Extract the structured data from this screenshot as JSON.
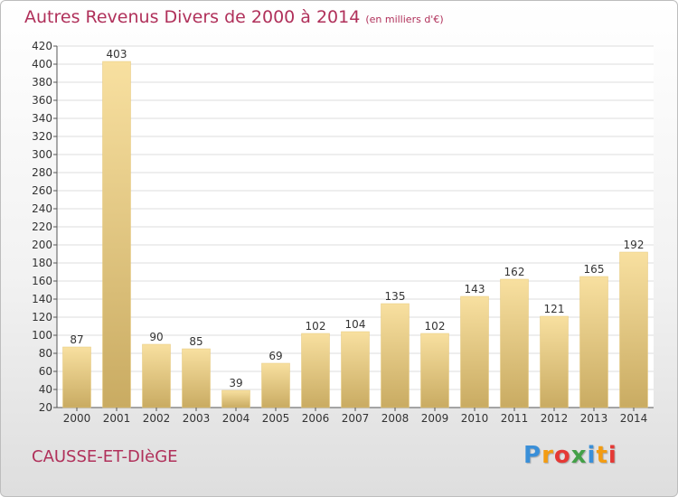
{
  "chart_data": {
    "type": "bar",
    "title": "Autres Revenus Divers de 2000 à 2014",
    "subtitle": "(en milliers d'€)",
    "categories": [
      "2000",
      "2001",
      "2002",
      "2003",
      "2004",
      "2005",
      "2006",
      "2007",
      "2008",
      "2009",
      "2010",
      "2011",
      "2012",
      "2013",
      "2014"
    ],
    "values": [
      87,
      403,
      90,
      85,
      39,
      69,
      102,
      104,
      135,
      102,
      143,
      162,
      121,
      165,
      192
    ],
    "ylim": [
      20,
      420
    ],
    "yticks": [
      20,
      40,
      60,
      80,
      100,
      120,
      140,
      160,
      180,
      200,
      220,
      240,
      260,
      280,
      300,
      320,
      340,
      360,
      380,
      400,
      420
    ],
    "grid": true,
    "data_labels": true
  },
  "location": "CAUSSE-ET-DIèGE",
  "logo": {
    "letters": [
      "P",
      "r",
      "o",
      "x",
      "i",
      "t",
      "i"
    ],
    "colors": [
      "#3a8fd8",
      "#f39c12",
      "#e53935",
      "#43a047",
      "#3a8fd8",
      "#f39c12",
      "#e53935"
    ]
  },
  "colors": {
    "title": "#b0305a",
    "bar_light": "#f8e0a0",
    "bar_dark": "#c9ab62",
    "grid": "#dddddd",
    "axis": "#555555"
  }
}
